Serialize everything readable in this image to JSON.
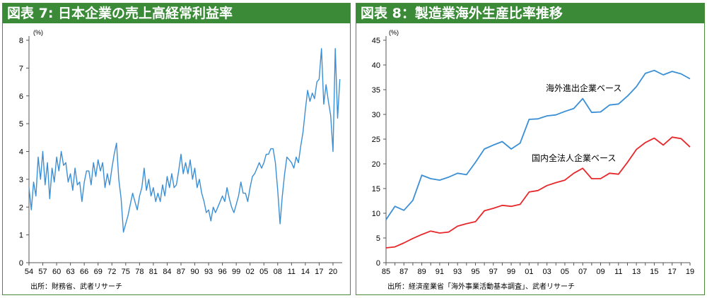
{
  "charts": [
    {
      "title": "図表 7: 日本企業の売上高経常利益率",
      "unit": "(%)",
      "source": "出所：財務省、武者リサーチ"
    },
    {
      "title": "図表 8：製造業海外生産比率推移",
      "unit": "(%)",
      "source": "出所：経済産業省「海外事業活動基本調査」、武者リサーチ"
    }
  ],
  "chart_data": [
    {
      "type": "line",
      "title": "図表 7: 日本企業の売上高経常利益率",
      "ylabel": "(%)",
      "ylim": [
        0,
        8
      ],
      "yticks": [
        0,
        1,
        2,
        3,
        4,
        5,
        6,
        7,
        8
      ],
      "xlim": [
        1954,
        2022
      ],
      "xtick_labels": [
        "54",
        "57",
        "60",
        "63",
        "66",
        "69",
        "72",
        "75",
        "78",
        "81",
        "84",
        "87",
        "90",
        "93",
        "96",
        "99",
        "02",
        "05",
        "08",
        "11",
        "14",
        "17",
        "20"
      ],
      "color": "#3a8fd6",
      "series": [
        {
          "x": [
            1954.0,
            1954.5,
            1955.0,
            1955.5,
            1956.0,
            1956.5,
            1957.0,
            1957.5,
            1958.0,
            1958.5,
            1959.0,
            1959.5,
            1960.0,
            1960.5,
            1961.0,
            1961.5,
            1962.0,
            1962.5,
            1963.0,
            1963.5,
            1964.0,
            1964.5,
            1965.0,
            1965.5,
            1966.0,
            1966.5,
            1967.0,
            1967.5,
            1968.0,
            1968.5,
            1969.0,
            1969.5,
            1970.0,
            1970.5,
            1971.0,
            1971.5,
            1972.0,
            1972.5,
            1973.0,
            1973.5,
            1974.0,
            1974.5,
            1975.0,
            1975.5,
            1976.0,
            1976.5,
            1977.0,
            1977.5,
            1978.0,
            1978.5,
            1979.0,
            1979.5,
            1980.0,
            1980.5,
            1981.0,
            1981.5,
            1982.0,
            1982.5,
            1983.0,
            1983.5,
            1984.0,
            1984.5,
            1985.0,
            1985.5,
            1986.0,
            1986.5,
            1987.0,
            1987.5,
            1988.0,
            1988.5,
            1989.0,
            1989.5,
            1990.0,
            1990.5,
            1991.0,
            1991.5,
            1992.0,
            1992.5,
            1993.0,
            1993.5,
            1994.0,
            1994.5,
            1995.0,
            1995.5,
            1996.0,
            1996.5,
            1997.0,
            1997.5,
            1998.0,
            1998.5,
            1999.0,
            1999.5,
            2000.0,
            2000.5,
            2001.0,
            2001.5,
            2002.0,
            2002.5,
            2003.0,
            2003.5,
            2004.0,
            2004.5,
            2005.0,
            2005.5,
            2006.0,
            2006.5,
            2007.0,
            2007.5,
            2008.0,
            2008.5,
            2009.0,
            2009.5,
            2010.0,
            2010.5,
            2011.0,
            2011.5,
            2012.0,
            2012.5,
            2013.0,
            2013.5,
            2014.0,
            2014.5,
            2015.0,
            2015.5,
            2016.0,
            2016.5,
            2017.0,
            2017.5,
            2018.0,
            2018.5,
            2019.0,
            2019.5,
            2020.0,
            2020.5,
            2021.0,
            2021.5
          ],
          "y": [
            2.7,
            1.9,
            2.9,
            2.4,
            3.8,
            3.0,
            4.0,
            2.8,
            3.6,
            2.3,
            3.4,
            2.9,
            3.8,
            3.3,
            4.0,
            3.5,
            3.6,
            2.9,
            3.2,
            2.6,
            3.4,
            2.8,
            2.9,
            2.2,
            2.9,
            3.3,
            3.3,
            2.8,
            3.6,
            3.1,
            3.7,
            3.3,
            3.6,
            2.7,
            3.2,
            2.8,
            3.4,
            3.9,
            4.3,
            3.0,
            2.3,
            1.1,
            1.4,
            1.7,
            2.1,
            2.5,
            2.2,
            1.9,
            2.4,
            2.7,
            3.4,
            2.6,
            3.0,
            2.4,
            2.7,
            2.2,
            2.5,
            2.2,
            2.8,
            2.4,
            3.1,
            2.7,
            3.2,
            2.7,
            2.8,
            3.3,
            3.9,
            3.2,
            3.6,
            3.2,
            3.7,
            3.0,
            3.4,
            2.7,
            3.0,
            2.5,
            2.2,
            1.8,
            1.9,
            1.5,
            2.0,
            1.8,
            2.0,
            2.2,
            2.4,
            2.2,
            2.7,
            2.3,
            2.0,
            1.8,
            2.1,
            2.4,
            2.9,
            2.5,
            2.5,
            2.2,
            2.7,
            3.1,
            3.2,
            3.4,
            3.6,
            3.4,
            3.6,
            3.9,
            3.9,
            4.1,
            4.1,
            3.6,
            2.6,
            1.4,
            2.4,
            3.2,
            3.8,
            3.7,
            3.6,
            3.4,
            3.8,
            3.6,
            4.2,
            4.7,
            5.5,
            6.2,
            5.8,
            6.1,
            5.9,
            6.5,
            6.6,
            7.7,
            5.7,
            6.4,
            5.8,
            5.3,
            4.0,
            7.7,
            5.2,
            6.6
          ]
        }
      ]
    },
    {
      "type": "line",
      "title": "図表 8：製造業海外生産比率推移",
      "ylabel": "(%)",
      "ylim": [
        0,
        45
      ],
      "yticks": [
        0,
        5,
        10,
        15,
        20,
        25,
        30,
        35,
        40,
        45
      ],
      "categories": [
        "85",
        "86",
        "87",
        "88",
        "89",
        "90",
        "91",
        "92",
        "93",
        "94",
        "95",
        "96",
        "97",
        "98",
        "99",
        "00",
        "01",
        "02",
        "03",
        "04",
        "05",
        "06",
        "07",
        "08",
        "09",
        "10",
        "11",
        "12",
        "13",
        "14",
        "15",
        "16",
        "17",
        "18",
        "19"
      ],
      "xtick_labels": [
        "85",
        "87",
        "89",
        "91",
        "93",
        "95",
        "97",
        "99",
        "01",
        "03",
        "05",
        "07",
        "09",
        "11",
        "13",
        "15",
        "17",
        "19"
      ],
      "series": [
        {
          "name": "海外進出企業ベース",
          "color": "#3a8fd6",
          "values": [
            8.7,
            11.4,
            10.6,
            12.6,
            17.7,
            17.0,
            16.7,
            17.3,
            18.1,
            17.8,
            20.3,
            23.0,
            23.8,
            24.5,
            23.0,
            24.2,
            29.0,
            29.1,
            29.7,
            29.9,
            30.6,
            31.2,
            33.2,
            30.4,
            30.5,
            31.9,
            32.1,
            33.7,
            35.6,
            38.3,
            38.9,
            38.0,
            38.7,
            38.2,
            37.2
          ]
        },
        {
          "name": "国内全法人企業ベース",
          "color": "#e8272a",
          "values": [
            3.0,
            3.2,
            4.0,
            4.9,
            5.7,
            6.4,
            6.0,
            6.2,
            7.4,
            7.9,
            8.3,
            10.5,
            11.0,
            11.6,
            11.4,
            11.8,
            14.3,
            14.6,
            15.6,
            16.2,
            16.7,
            18.1,
            19.1,
            17.0,
            17.0,
            18.1,
            17.9,
            20.3,
            22.9,
            24.3,
            25.2,
            23.8,
            25.4,
            25.1,
            23.4
          ]
        }
      ]
    }
  ]
}
